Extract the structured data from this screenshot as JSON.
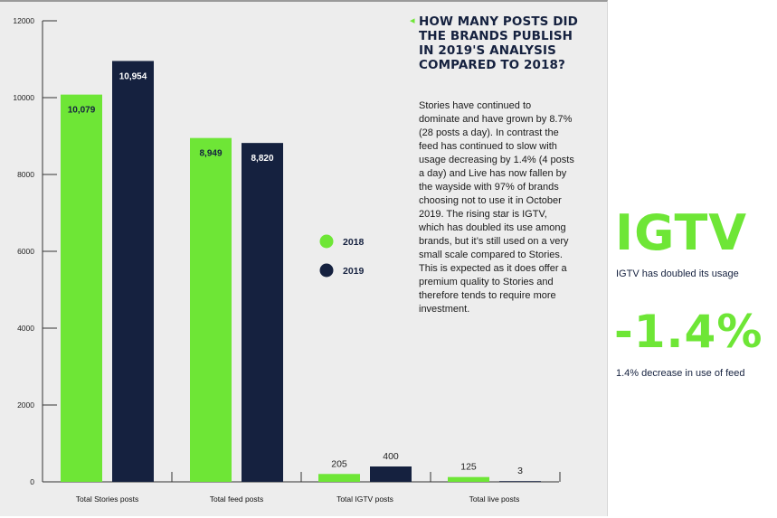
{
  "chart_data": {
    "type": "bar",
    "categories": [
      "Total Stories posts",
      "Total feed posts",
      "Total IGTV posts",
      "Total live posts"
    ],
    "series": [
      {
        "name": "2018",
        "values": [
          10079,
          8949,
          205,
          125
        ],
        "labels": [
          "10,079",
          "8,949",
          "205",
          "125"
        ],
        "color": "#6ee636"
      },
      {
        "name": "2019",
        "values": [
          10954,
          8820,
          400,
          3
        ],
        "labels": [
          "10,954",
          "8,820",
          "400",
          "3"
        ],
        "color": "#15213f"
      }
    ],
    "ylim": [
      0,
      12000
    ],
    "yticks": [
      "0",
      "2000",
      "4000",
      "6000",
      "8000",
      "10000",
      "12000"
    ],
    "legend": "center-right"
  },
  "heading": "HOW MANY POSTS DID THE BRANDS PUBLISH IN 2019'S ANALYSIS COMPARED TO 2018?",
  "body": "Stories have continued to dominate and have grown by 8.7% (28 posts a day). In contrast the feed has continued to slow with usage decreasing by 1.4% (4 posts a day) and Live has now fallen by the wayside with 97% of brands choosing not to use it in October 2019. The rising star is IGTV, which has doubled its use among brands, but it’s still used on a very small scale compared to Stories. This is expected as it does offer a premium quality to Stories and therefore tends to require more investment.",
  "stats": [
    {
      "value": "IGTV",
      "caption": "IGTV has doubled its usage"
    },
    {
      "value": "-1.4%",
      "caption": "1.4% decrease in use of feed"
    }
  ],
  "colors": {
    "accent": "#6ee636",
    "navy": "#15213f",
    "panel": "#ededed"
  }
}
